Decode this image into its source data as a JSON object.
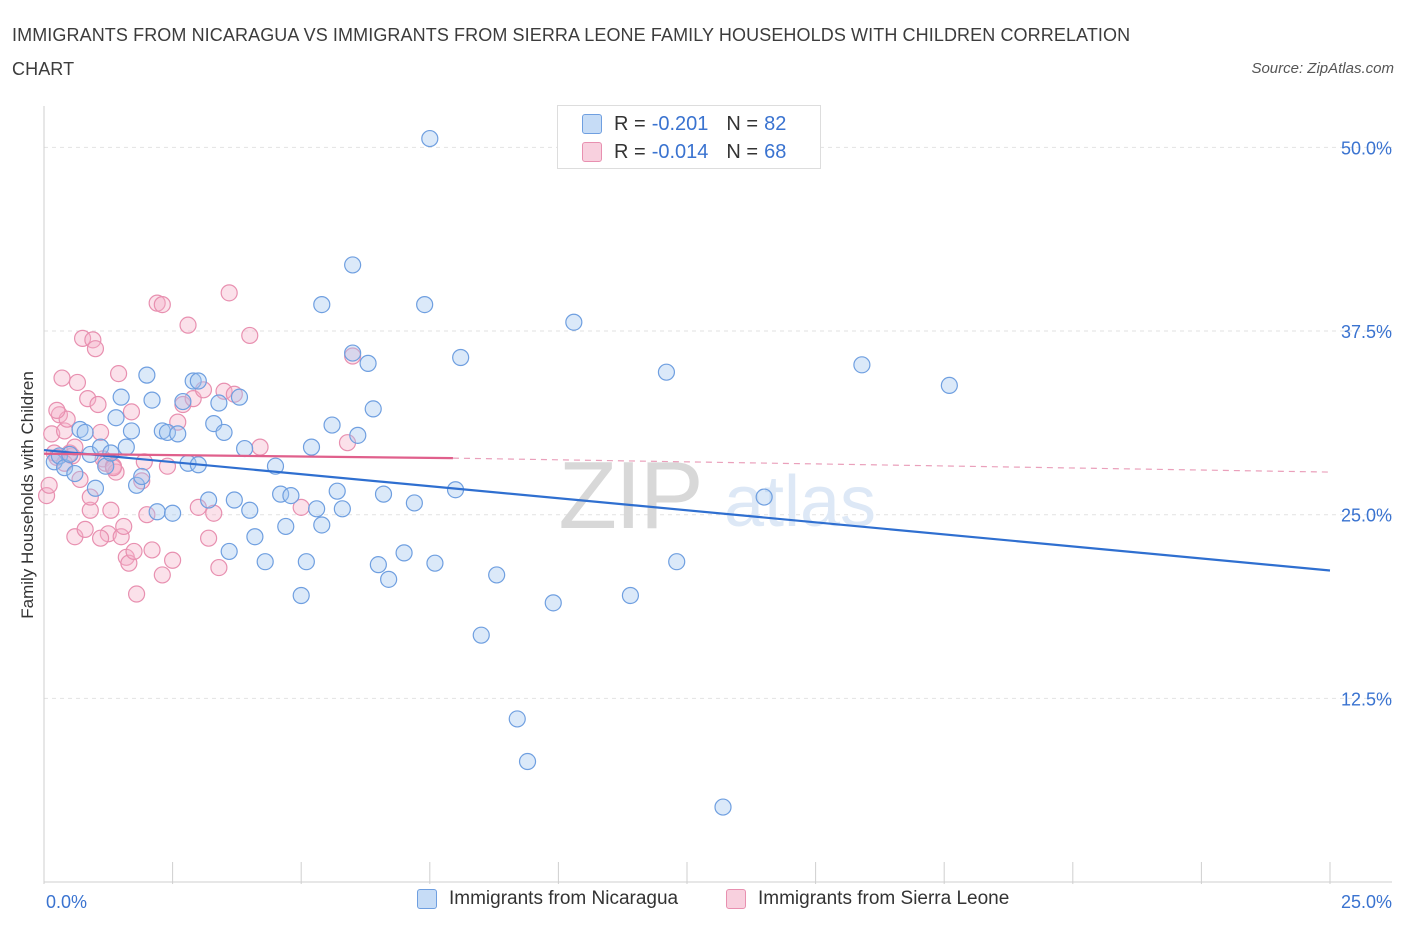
{
  "chart_data": {
    "type": "scatter",
    "title": "IMMIGRANTS FROM NICARAGUA VS IMMIGRANTS FROM SIERRA LEONE FAMILY HOUSEHOLDS WITH CHILDREN CORRELATION CHART",
    "source": "Source: ZipAtlas.com",
    "xlabel": "",
    "ylabel": "Family Households with Children",
    "xlim": [
      0,
      25
    ],
    "ylim": [
      0,
      52
    ],
    "x_tick_labels": [
      "0.0%",
      "25.0%"
    ],
    "y_ticks": [
      12.5,
      25.0,
      37.5,
      50.0
    ],
    "y_tick_labels": [
      "12.5%",
      "25.0%",
      "37.5%",
      "50.0%"
    ],
    "watermark": "ZIPatlas",
    "legend": {
      "rows": [
        {
          "r_label": "R =",
          "r_value": "-0.201",
          "n_label": "N =",
          "n_value": "82"
        },
        {
          "r_label": "R =",
          "r_value": "-0.014",
          "n_label": "N =",
          "n_value": "68"
        }
      ]
    },
    "series": [
      {
        "name": "Immigrants from Nicaragua",
        "color": "#6f9fe0",
        "fill": "rgba(160,196,240,0.38)",
        "line_color": "#2f6fd0",
        "trend": {
          "x": [
            0,
            25
          ],
          "y": [
            29.4,
            21.2
          ]
        },
        "points": [
          [
            0.2,
            28.6
          ],
          [
            0.3,
            29.0
          ],
          [
            0.4,
            28.2
          ],
          [
            0.5,
            29.1
          ],
          [
            0.6,
            27.8
          ],
          [
            0.7,
            30.8
          ],
          [
            0.8,
            30.6
          ],
          [
            0.9,
            29.1
          ],
          [
            1.0,
            26.8
          ],
          [
            1.1,
            29.6
          ],
          [
            1.2,
            28.3
          ],
          [
            1.3,
            29.2
          ],
          [
            1.4,
            31.6
          ],
          [
            1.5,
            33.0
          ],
          [
            1.6,
            29.6
          ],
          [
            1.7,
            30.7
          ],
          [
            1.8,
            27.0
          ],
          [
            1.9,
            27.6
          ],
          [
            2.0,
            34.5
          ],
          [
            2.1,
            32.8
          ],
          [
            2.2,
            25.2
          ],
          [
            2.3,
            30.7
          ],
          [
            2.4,
            30.6
          ],
          [
            2.5,
            25.1
          ],
          [
            2.6,
            30.5
          ],
          [
            2.7,
            32.7
          ],
          [
            2.8,
            28.5
          ],
          [
            2.9,
            34.1
          ],
          [
            3.0,
            34.1
          ],
          [
            3.0,
            28.4
          ],
          [
            3.2,
            26.0
          ],
          [
            3.3,
            31.2
          ],
          [
            3.4,
            32.6
          ],
          [
            3.5,
            30.6
          ],
          [
            3.6,
            22.5
          ],
          [
            3.7,
            26.0
          ],
          [
            3.8,
            33.0
          ],
          [
            3.9,
            29.5
          ],
          [
            4.0,
            25.3
          ],
          [
            4.1,
            23.5
          ],
          [
            4.3,
            21.8
          ],
          [
            4.5,
            28.3
          ],
          [
            4.6,
            26.4
          ],
          [
            4.7,
            24.2
          ],
          [
            4.8,
            26.3
          ],
          [
            5.0,
            19.5
          ],
          [
            5.1,
            21.8
          ],
          [
            5.2,
            29.6
          ],
          [
            5.3,
            25.4
          ],
          [
            5.4,
            24.3
          ],
          [
            5.6,
            31.1
          ],
          [
            5.7,
            26.6
          ],
          [
            5.8,
            25.4
          ],
          [
            6.0,
            36.0
          ],
          [
            6.1,
            30.4
          ],
          [
            6.3,
            35.3
          ],
          [
            6.4,
            32.2
          ],
          [
            6.5,
            21.6
          ],
          [
            6.6,
            26.4
          ],
          [
            6.7,
            20.6
          ],
          [
            7.0,
            22.4
          ],
          [
            7.2,
            25.8
          ],
          [
            7.6,
            21.7
          ],
          [
            8.0,
            26.7
          ],
          [
            8.1,
            35.7
          ],
          [
            8.5,
            16.8
          ],
          [
            8.8,
            20.9
          ],
          [
            9.2,
            11.1
          ],
          [
            9.4,
            8.2
          ],
          [
            9.9,
            19.0
          ],
          [
            10.3,
            38.1
          ],
          [
            11.4,
            19.5
          ],
          [
            12.1,
            34.7
          ],
          [
            12.3,
            21.8
          ],
          [
            13.2,
            5.1
          ],
          [
            14.0,
            26.2
          ],
          [
            15.9,
            35.2
          ],
          [
            17.6,
            33.8
          ],
          [
            6.0,
            42.0
          ],
          [
            7.5,
            50.6
          ],
          [
            5.4,
            39.3
          ],
          [
            7.4,
            39.3
          ]
        ]
      },
      {
        "name": "Immigrants from Sierra Leone",
        "color": "#e890b0",
        "fill": "rgba(244,176,200,0.38)",
        "line_color": "#e0608c",
        "trend": {
          "x": [
            0,
            7.95
          ],
          "y": [
            29.15,
            28.85
          ]
        },
        "trend_dashed": {
          "x": [
            7.95,
            25
          ],
          "y": [
            28.85,
            27.9
          ]
        },
        "points": [
          [
            0.05,
            26.3
          ],
          [
            0.1,
            27.0
          ],
          [
            0.15,
            30.5
          ],
          [
            0.2,
            29.2
          ],
          [
            0.25,
            28.9
          ],
          [
            0.3,
            31.8
          ],
          [
            0.35,
            34.3
          ],
          [
            0.4,
            30.7
          ],
          [
            0.45,
            31.5
          ],
          [
            0.5,
            29.2
          ],
          [
            0.55,
            29.0
          ],
          [
            0.6,
            23.5
          ],
          [
            0.65,
            34.0
          ],
          [
            0.7,
            27.4
          ],
          [
            0.75,
            37.0
          ],
          [
            0.8,
            24.0
          ],
          [
            0.85,
            32.9
          ],
          [
            0.9,
            25.3
          ],
          [
            0.95,
            36.9
          ],
          [
            1.0,
            36.3
          ],
          [
            1.05,
            32.5
          ],
          [
            1.1,
            30.6
          ],
          [
            1.15,
            28.8
          ],
          [
            1.2,
            28.5
          ],
          [
            1.25,
            23.7
          ],
          [
            1.3,
            25.3
          ],
          [
            1.35,
            28.3
          ],
          [
            1.4,
            27.9
          ],
          [
            1.45,
            34.6
          ],
          [
            1.5,
            23.5
          ],
          [
            1.55,
            24.2
          ],
          [
            1.6,
            22.1
          ],
          [
            1.65,
            21.7
          ],
          [
            1.7,
            32.0
          ],
          [
            1.75,
            22.5
          ],
          [
            1.8,
            19.6
          ],
          [
            1.9,
            27.3
          ],
          [
            1.95,
            28.6
          ],
          [
            2.0,
            25.0
          ],
          [
            2.1,
            22.6
          ],
          [
            2.2,
            39.4
          ],
          [
            2.3,
            20.9
          ],
          [
            2.4,
            28.3
          ],
          [
            2.5,
            21.9
          ],
          [
            2.6,
            31.3
          ],
          [
            2.7,
            32.5
          ],
          [
            2.8,
            37.9
          ],
          [
            2.9,
            32.9
          ],
          [
            3.0,
            25.5
          ],
          [
            3.1,
            33.5
          ],
          [
            3.2,
            23.4
          ],
          [
            3.3,
            25.1
          ],
          [
            3.4,
            21.4
          ],
          [
            3.5,
            33.4
          ],
          [
            3.6,
            40.1
          ],
          [
            3.7,
            33.2
          ],
          [
            4.0,
            37.2
          ],
          [
            4.2,
            29.6
          ],
          [
            5.0,
            25.5
          ],
          [
            5.9,
            29.9
          ],
          [
            6.0,
            35.8
          ],
          [
            0.4,
            28.5
          ],
          [
            0.6,
            29.6
          ],
          [
            0.9,
            26.2
          ],
          [
            1.1,
            23.4
          ],
          [
            2.3,
            39.3
          ],
          [
            0.25,
            32.1
          ],
          [
            1.35,
            28.2
          ]
        ]
      }
    ]
  },
  "bottom_legend": [
    "Immigrants from Nicaragua",
    "Immigrants from Sierra Leone"
  ]
}
